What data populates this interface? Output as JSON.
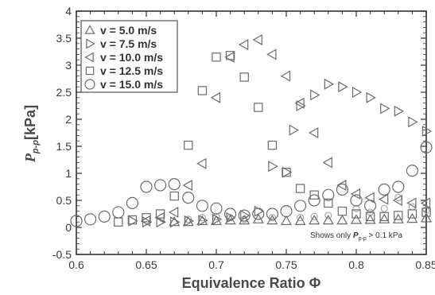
{
  "chart_data": {
    "type": "scatter",
    "xlabel": "Equivalence Ratio Φ",
    "ylabel_main": "P",
    "ylabel_sub": "p-p",
    "ylabel_unit": "[kPa]",
    "xlim": [
      0.6,
      0.85
    ],
    "ylim": [
      -0.5,
      4
    ],
    "x_ticks": [
      "0.6",
      "0.65",
      "0.7",
      "0.75",
      "0.8",
      "0.85"
    ],
    "y_ticks": [
      "-0.5",
      "0",
      "0.5",
      "1",
      "1.5",
      "2",
      "2.5",
      "3",
      "3.5",
      "4"
    ],
    "legend_position": "top-left",
    "annotation": {
      "prefix": "Shows only ",
      "main": "P",
      "sub": "p-p",
      "suffix": " > 0.1 kPa"
    },
    "series": [
      {
        "name": "v = 5.0 m/s",
        "marker": "triangle-up",
        "points": [
          [
            0.67,
            0.1
          ],
          [
            0.68,
            0.1
          ],
          [
            0.69,
            0.12
          ],
          [
            0.7,
            0.12
          ],
          [
            0.71,
            0.13
          ],
          [
            0.72,
            0.13
          ],
          [
            0.73,
            0.15
          ],
          [
            0.74,
            0.13
          ],
          [
            0.75,
            0.12
          ],
          [
            0.76,
            0.12
          ],
          [
            0.77,
            0.13
          ],
          [
            0.78,
            0.13
          ],
          [
            0.79,
            0.13
          ],
          [
            0.8,
            0.14
          ],
          [
            0.81,
            0.14
          ],
          [
            0.82,
            0.15
          ],
          [
            0.83,
            0.15
          ],
          [
            0.84,
            0.16
          ],
          [
            0.85,
            0.17
          ]
        ]
      },
      {
        "name": "v = 7.5 m/s",
        "marker": "triangle-right",
        "points": [
          [
            0.64,
            0.12
          ],
          [
            0.65,
            0.1
          ],
          [
            0.66,
            0.1
          ],
          [
            0.67,
            0.1
          ],
          [
            0.68,
            0.12
          ],
          [
            0.69,
            0.13
          ],
          [
            0.7,
            0.15
          ],
          [
            0.71,
            0.18
          ],
          [
            0.72,
            0.22
          ],
          [
            0.73,
            0.3
          ],
          [
            0.74,
            1.13
          ],
          [
            0.75,
            1.02
          ],
          [
            0.755,
            1.8
          ],
          [
            0.76,
            2.25
          ],
          [
            0.77,
            2.45
          ],
          [
            0.78,
            2.65
          ],
          [
            0.79,
            2.6
          ],
          [
            0.8,
            2.5
          ],
          [
            0.81,
            2.4
          ],
          [
            0.82,
            2.2
          ],
          [
            0.83,
            2.15
          ],
          [
            0.84,
            1.95
          ],
          [
            0.85,
            1.78
          ]
        ]
      },
      {
        "name": "v = 10.0 m/s",
        "marker": "triangle-left",
        "points": [
          [
            0.65,
            0.12
          ],
          [
            0.66,
            0.18
          ],
          [
            0.67,
            0.28
          ],
          [
            0.68,
            0.78
          ],
          [
            0.69,
            1.18
          ],
          [
            0.7,
            2.4
          ],
          [
            0.71,
            3.15
          ],
          [
            0.72,
            3.38
          ],
          [
            0.73,
            3.47
          ],
          [
            0.74,
            3.2
          ],
          [
            0.75,
            2.8
          ],
          [
            0.76,
            2.3
          ],
          [
            0.77,
            1.75
          ],
          [
            0.78,
            1.2
          ],
          [
            0.79,
            0.78
          ],
          [
            0.8,
            0.62
          ],
          [
            0.81,
            0.55
          ],
          [
            0.82,
            0.52
          ],
          [
            0.83,
            0.5
          ],
          [
            0.84,
            0.45
          ],
          [
            0.85,
            0.45
          ]
        ]
      },
      {
        "name": "v = 12.5 m/s",
        "marker": "square",
        "points": [
          [
            0.63,
            0.1
          ],
          [
            0.64,
            0.14
          ],
          [
            0.65,
            0.18
          ],
          [
            0.66,
            0.25
          ],
          [
            0.67,
            0.58
          ],
          [
            0.68,
            1.52
          ],
          [
            0.69,
            2.53
          ],
          [
            0.7,
            3.15
          ],
          [
            0.71,
            3.18
          ],
          [
            0.72,
            2.78
          ],
          [
            0.73,
            2.22
          ],
          [
            0.74,
            1.52
          ],
          [
            0.75,
            1.02
          ],
          [
            0.76,
            0.72
          ],
          [
            0.77,
            0.6
          ],
          [
            0.78,
            0.45
          ],
          [
            0.79,
            0.3
          ],
          [
            0.8,
            0.25
          ],
          [
            0.81,
            0.2
          ],
          [
            0.82,
            0.2
          ],
          [
            0.83,
            0.22
          ],
          [
            0.84,
            0.25
          ],
          [
            0.85,
            0.28
          ]
        ]
      },
      {
        "name": "v = 15.0 m/s",
        "marker": "circle",
        "points": [
          [
            0.6,
            0.12
          ],
          [
            0.61,
            0.15
          ],
          [
            0.62,
            0.2
          ],
          [
            0.63,
            0.28
          ],
          [
            0.64,
            0.45
          ],
          [
            0.65,
            0.75
          ],
          [
            0.66,
            0.78
          ],
          [
            0.67,
            0.8
          ],
          [
            0.68,
            0.55
          ],
          [
            0.69,
            0.4
          ],
          [
            0.7,
            0.35
          ],
          [
            0.71,
            0.25
          ],
          [
            0.72,
            0.22
          ],
          [
            0.73,
            0.25
          ],
          [
            0.74,
            0.25
          ],
          [
            0.75,
            0.3
          ],
          [
            0.76,
            0.4
          ],
          [
            0.77,
            0.5
          ],
          [
            0.78,
            0.6
          ],
          [
            0.79,
            0.7
          ],
          [
            0.8,
            0.5
          ],
          [
            0.81,
            0.4
          ],
          [
            0.82,
            0.7
          ],
          [
            0.83,
            0.75
          ],
          [
            0.84,
            1.05
          ],
          [
            0.85,
            1.48
          ]
        ]
      }
    ],
    "light_circle_points": [
      [
        0.68,
        0.15
      ],
      [
        0.69,
        0.18
      ],
      [
        0.7,
        0.2
      ],
      [
        0.71,
        0.18
      ],
      [
        0.72,
        0.15
      ],
      [
        0.74,
        0.18
      ],
      [
        0.76,
        0.18
      ],
      [
        0.77,
        0.2
      ],
      [
        0.78,
        0.22
      ],
      [
        0.8,
        0.35
      ],
      [
        0.81,
        0.28
      ],
      [
        0.82,
        0.35
      ],
      [
        0.83,
        0.55
      ],
      [
        0.84,
        0.38
      ],
      [
        0.85,
        0.32
      ]
    ]
  }
}
